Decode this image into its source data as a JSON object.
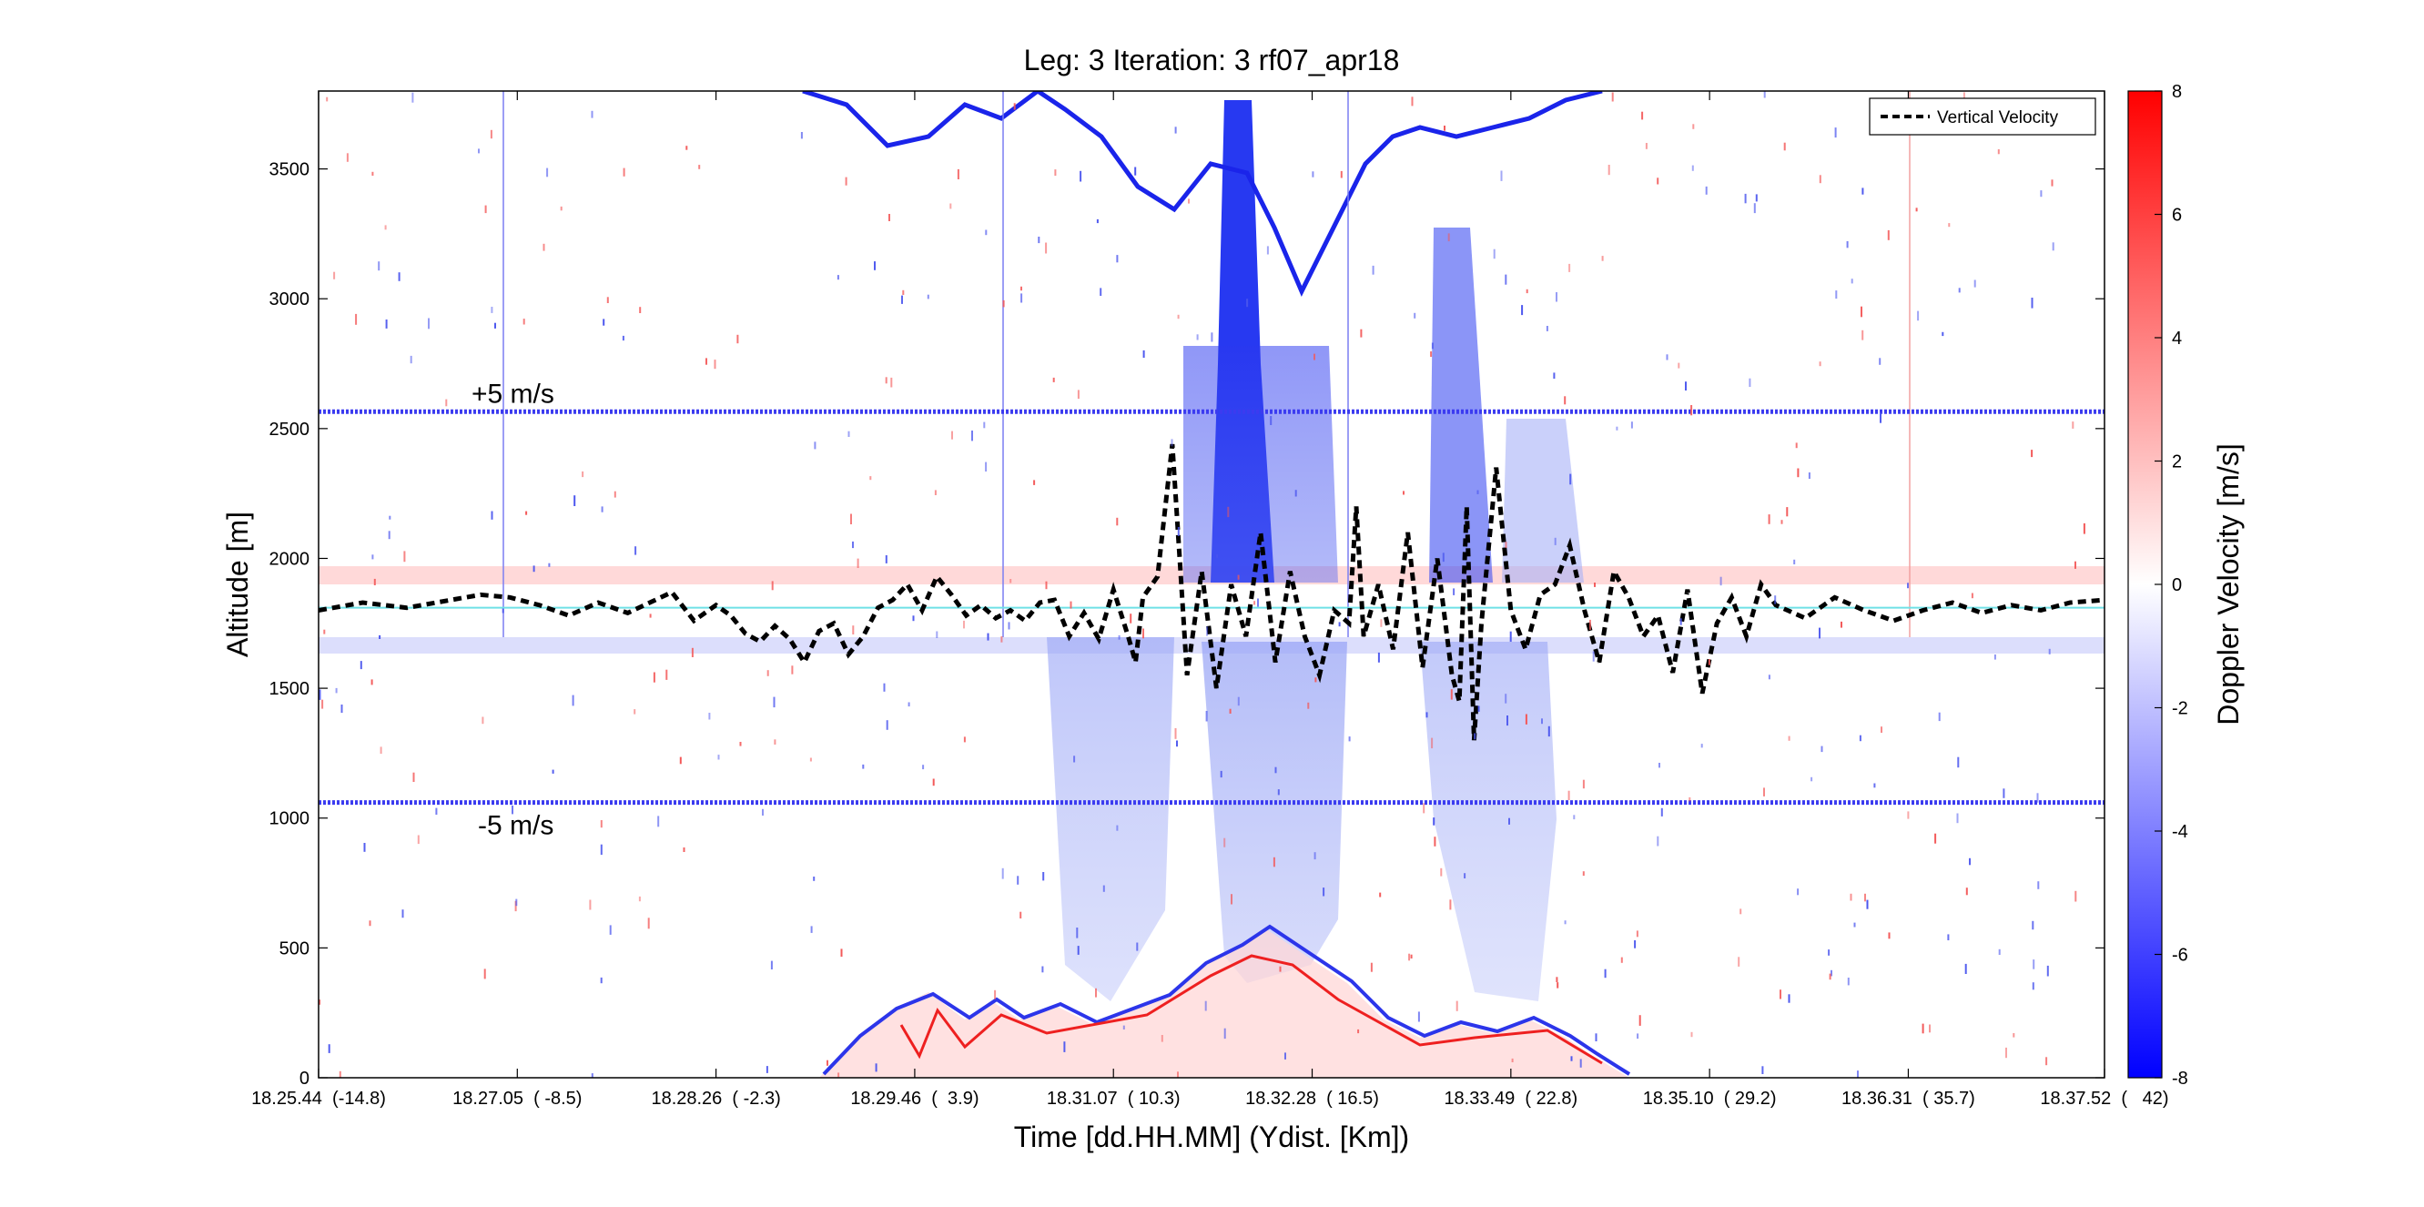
{
  "chart_data": {
    "type": "heatmap",
    "title": "Leg: 3  Iteration: 3  rf07_apr18",
    "xlabel": "Time [dd.HH.MM]    (Ydist. [Km])",
    "ylabel": "Altitude [m]",
    "colorbar_label": "Doppler Velocity [m/s]",
    "x_range_minutes": [
      0,
      12.133
    ],
    "ylim": [
      0,
      3800
    ],
    "x_ticks": [
      {
        "t": 0.0,
        "label": "18.25.44  (-14.8)"
      },
      {
        "t": 1.35,
        "label": "18.27.05  ( -8.5)"
      },
      {
        "t": 2.7,
        "label": "18.28.26  ( -2.3)"
      },
      {
        "t": 4.05,
        "label": "18.29.46  (  3.9)"
      },
      {
        "t": 5.4,
        "label": "18.31.07  ( 10.3)"
      },
      {
        "t": 6.75,
        "label": "18.32.28  ( 16.5)"
      },
      {
        "t": 8.1,
        "label": "18.33.49  ( 22.8)"
      },
      {
        "t": 9.45,
        "label": "18.35.10  ( 29.2)"
      },
      {
        "t": 10.8,
        "label": "18.36.31  ( 35.7)"
      },
      {
        "t": 12.133,
        "label": "18.37.52  (   42)"
      }
    ],
    "y_ticks": [
      {
        "v": 0,
        "label": "0"
      },
      {
        "v": 500,
        "label": "500"
      },
      {
        "v": 1000,
        "label": "1000"
      },
      {
        "v": 1500,
        "label": "1500"
      },
      {
        "v": 2000,
        "label": "2000"
      },
      {
        "v": 2500,
        "label": "2500"
      },
      {
        "v": 3000,
        "label": "3000"
      },
      {
        "v": 3500,
        "label": "3500"
      }
    ],
    "colorbar": {
      "range": [
        -8,
        8
      ],
      "ticks": [
        {
          "v": 8,
          "label": "8"
        },
        {
          "v": 6,
          "label": "6"
        },
        {
          "v": 4,
          "label": "4"
        },
        {
          "v": 2,
          "label": "2"
        },
        {
          "v": 0,
          "label": "0"
        },
        {
          "v": -2,
          "label": "-2"
        },
        {
          "v": -4,
          "label": "-4"
        },
        {
          "v": -6,
          "label": "-6"
        },
        {
          "v": -8,
          "label": "-8"
        }
      ],
      "colors": {
        "max": "#ff0000",
        "mid": "#ffffff",
        "min": "#0000ff"
      }
    },
    "reference_lines": [
      {
        "kind": "flight_level",
        "altitude": 1810,
        "color": "#6fe0e6"
      },
      {
        "kind": "scale_upper",
        "altitude": 2565,
        "label": "+5 m/s",
        "color": "#3b3bf0"
      },
      {
        "kind": "scale_lower",
        "altitude": 1060,
        "label": "-5 m/s",
        "color": "#3b3bf0"
      }
    ],
    "legend": {
      "placement": "top-right",
      "entries": [
        {
          "name": "Vertical Velocity",
          "style": "dashed",
          "color": "#000000"
        }
      ]
    },
    "series": [
      {
        "name": "Vertical Velocity",
        "x": [
          0.0,
          0.3,
          0.6,
          0.9,
          1.1,
          1.3,
          1.5,
          1.7,
          1.9,
          2.1,
          2.4,
          2.55,
          2.7,
          2.8,
          2.9,
          3.0,
          3.1,
          3.2,
          3.3,
          3.4,
          3.5,
          3.6,
          3.7,
          3.8,
          3.9,
          4.0,
          4.1,
          4.2,
          4.3,
          4.4,
          4.5,
          4.6,
          4.7,
          4.8,
          4.9,
          5.0,
          5.1,
          5.2,
          5.3,
          5.4,
          5.5,
          5.55,
          5.6,
          5.7,
          5.8,
          5.85,
          5.9,
          6.0,
          6.1,
          6.2,
          6.3,
          6.4,
          6.5,
          6.6,
          6.7,
          6.8,
          6.9,
          7.0,
          7.05,
          7.1,
          7.2,
          7.3,
          7.4,
          7.5,
          7.6,
          7.7,
          7.75,
          7.8,
          7.85,
          7.9,
          8.0,
          8.1,
          8.2,
          8.3,
          8.4,
          8.5,
          8.6,
          8.7,
          8.8,
          8.9,
          9.0,
          9.1,
          9.2,
          9.3,
          9.4,
          9.5,
          9.6,
          9.7,
          9.8,
          9.9,
          10.1,
          10.3,
          10.5,
          10.7,
          10.9,
          11.1,
          11.3,
          11.5,
          11.7,
          11.9,
          12.133
        ],
        "y": [
          1800,
          1830,
          1810,
          1840,
          1860,
          1850,
          1820,
          1780,
          1830,
          1790,
          1870,
          1760,
          1820,
          1780,
          1710,
          1680,
          1740,
          1690,
          1600,
          1720,
          1750,
          1630,
          1700,
          1810,
          1840,
          1900,
          1800,
          1930,
          1860,
          1780,
          1820,
          1770,
          1800,
          1760,
          1830,
          1840,
          1700,
          1790,
          1690,
          1880,
          1700,
          1600,
          1850,
          1930,
          2440,
          2000,
          1550,
          1950,
          1500,
          1900,
          1700,
          2100,
          1600,
          1950,
          1700,
          1550,
          1800,
          1750,
          2200,
          1700,
          1900,
          1650,
          2100,
          1580,
          2000,
          1550,
          1450,
          2200,
          1300,
          1750,
          2350,
          1800,
          1650,
          1860,
          1900,
          2050,
          1800,
          1600,
          1950,
          1850,
          1700,
          1780,
          1560,
          1880,
          1480,
          1750,
          1850,
          1700,
          1900,
          1820,
          1770,
          1850,
          1800,
          1760,
          1800,
          1830,
          1790,
          1820,
          1800,
          1830,
          1840
        ]
      }
    ]
  }
}
